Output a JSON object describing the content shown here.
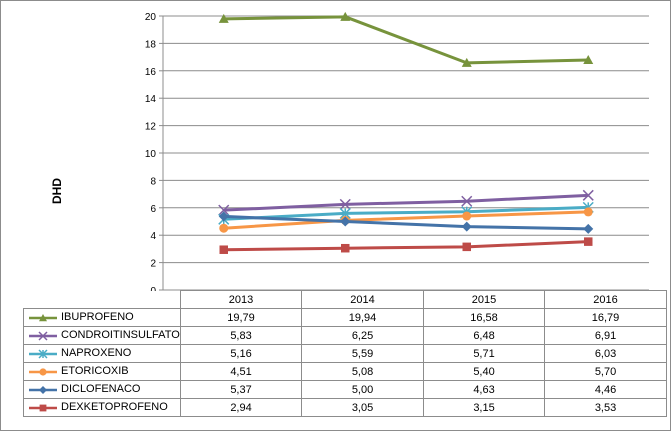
{
  "chart_data": {
    "type": "line",
    "title": "",
    "xlabel": "",
    "ylabel": "DHD",
    "categories": [
      "2013",
      "2014",
      "2015",
      "2016"
    ],
    "ylim": [
      0,
      20
    ],
    "yticks": [
      0,
      2,
      4,
      6,
      8,
      10,
      12,
      14,
      16,
      18,
      20
    ],
    "grid": true,
    "legend": "data-table-bottom",
    "series": [
      {
        "name": "IBUPROFENO",
        "values": [
          19.79,
          19.94,
          16.58,
          16.79
        ],
        "labels": [
          "19,79",
          "19,94",
          "16,58",
          "16,79"
        ],
        "color": "#77933c",
        "marker": "triangle"
      },
      {
        "name": "CONDROITINSULFATO",
        "values": [
          5.83,
          6.25,
          6.48,
          6.91
        ],
        "labels": [
          "5,83",
          "6,25",
          "6,48",
          "6,91"
        ],
        "color": "#7f5fa1",
        "marker": "x"
      },
      {
        "name": "NAPROXENO",
        "values": [
          5.16,
          5.59,
          5.71,
          6.03
        ],
        "labels": [
          "5,16",
          "5,59",
          "5,71",
          "6,03"
        ],
        "color": "#4aacc6",
        "marker": "asterisk"
      },
      {
        "name": "ETORICOXIB",
        "values": [
          4.51,
          5.08,
          5.4,
          5.7
        ],
        "labels": [
          "4,51",
          "5,08",
          "5,40",
          "5,70"
        ],
        "color": "#f79646",
        "marker": "circle"
      },
      {
        "name": "DICLOFENACO",
        "values": [
          5.37,
          5.0,
          4.63,
          4.46
        ],
        "labels": [
          "5,37",
          "5,00",
          "4,63",
          "4,46"
        ],
        "color": "#4473a8",
        "marker": "diamond"
      },
      {
        "name": "DEXKETOPROFENO",
        "values": [
          2.94,
          3.05,
          3.15,
          3.53
        ],
        "labels": [
          "2,94",
          "3,05",
          "3,15",
          "3,53"
        ],
        "color": "#be4b48",
        "marker": "square"
      }
    ]
  }
}
